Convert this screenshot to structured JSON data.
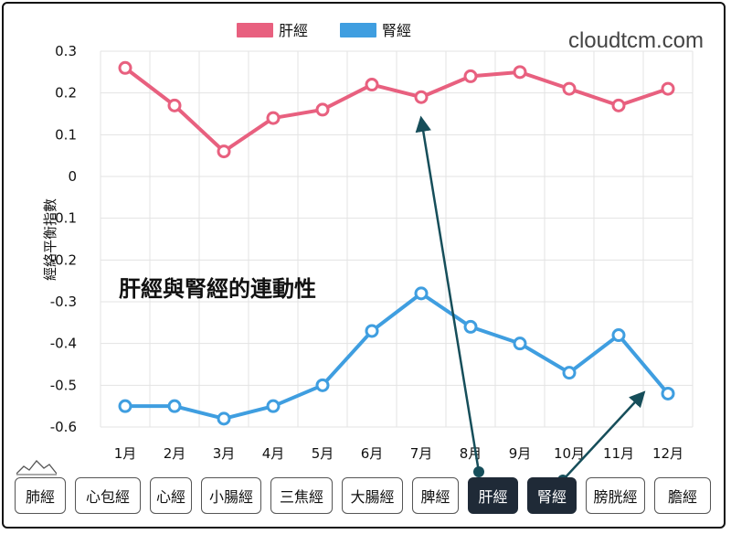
{
  "chart_data": {
    "type": "line",
    "categories": [
      "1月",
      "2月",
      "3月",
      "4月",
      "5月",
      "6月",
      "7月",
      "8月",
      "9月",
      "10月",
      "11月",
      "12月"
    ],
    "series": [
      {
        "name": "肝經",
        "color": "#e8607f",
        "values": [
          0.26,
          0.17,
          0.06,
          0.14,
          0.16,
          0.22,
          0.19,
          0.24,
          0.25,
          0.21,
          0.17,
          0.21
        ]
      },
      {
        "name": "腎經",
        "color": "#3f9ee0",
        "values": [
          -0.55,
          -0.55,
          -0.58,
          -0.55,
          -0.5,
          -0.37,
          -0.28,
          -0.36,
          -0.4,
          -0.47,
          -0.38,
          -0.52
        ]
      }
    ],
    "ylabel": "經絡平衡指數",
    "ylim": [
      -0.6,
      0.3
    ],
    "yticks": [
      "0.3",
      "0.2",
      "0.1",
      "0",
      "-0.1",
      "-0.2",
      "-0.3",
      "-0.4",
      "-0.5",
      "-0.6"
    ],
    "grid": true,
    "legend": "top-center",
    "annotation": "肝經與腎經的連動性",
    "watermark": "cloudtcm.com"
  },
  "tabs": [
    {
      "label": "肺經",
      "active": false
    },
    {
      "label": "心包經",
      "active": false
    },
    {
      "label": "心經",
      "active": false
    },
    {
      "label": "小腸經",
      "active": false
    },
    {
      "label": "三焦經",
      "active": false
    },
    {
      "label": "大腸經",
      "active": false
    },
    {
      "label": "脾經",
      "active": false
    },
    {
      "label": "肝經",
      "active": true
    },
    {
      "label": "腎經",
      "active": true
    },
    {
      "label": "膀胱經",
      "active": false
    },
    {
      "label": "膽經",
      "active": false
    }
  ],
  "arrow_color": "#164e5a"
}
